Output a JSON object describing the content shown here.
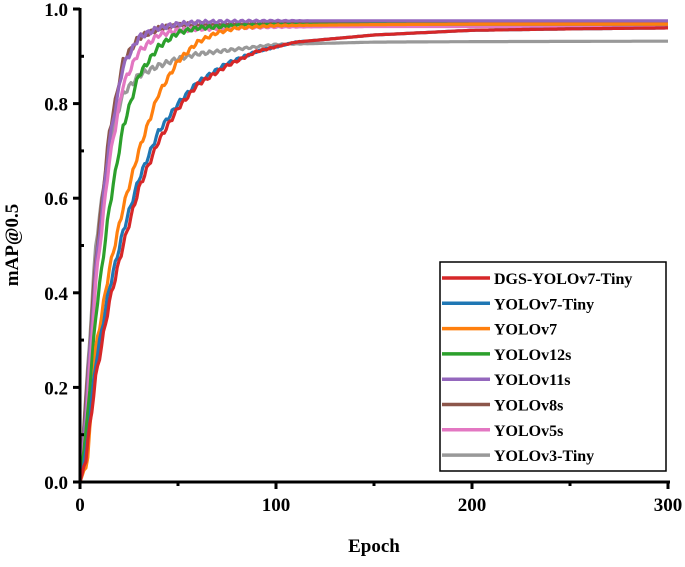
{
  "chart_data": {
    "type": "line",
    "title": "",
    "xlabel": "Epoch",
    "ylabel": "mAP@0.5",
    "xlim": [
      0,
      300
    ],
    "ylim": [
      0,
      1.0
    ],
    "xticks": [
      "0",
      "100",
      "200",
      "300"
    ],
    "xtick_values": [
      0,
      100,
      200,
      300
    ],
    "yticks": [
      "0.0",
      "0.2",
      "0.4",
      "0.6",
      "0.8",
      "1.0"
    ],
    "ytick_values": [
      0,
      0.2,
      0.4,
      0.6,
      0.8,
      1.0
    ],
    "grid": false,
    "legend_position": "bottom-right",
    "series": [
      {
        "name": "DGS-YOLOv7-Tiny",
        "color": "#d62728",
        "x": [
          0,
          3,
          8,
          15,
          22,
          30,
          40,
          50,
          60,
          75,
          90,
          110,
          150,
          200,
          250,
          300
        ],
        "values": [
          0,
          0.05,
          0.22,
          0.38,
          0.5,
          0.62,
          0.72,
          0.79,
          0.84,
          0.88,
          0.91,
          0.93,
          0.945,
          0.955,
          0.958,
          0.96
        ]
      },
      {
        "name": "YOLOv7-Tiny",
        "color": "#1f77b4",
        "x": [
          0,
          3,
          8,
          15,
          22,
          30,
          40,
          50,
          60,
          75,
          90,
          110,
          150,
          200,
          250,
          300
        ],
        "values": [
          0,
          0.06,
          0.25,
          0.41,
          0.53,
          0.64,
          0.74,
          0.8,
          0.845,
          0.885,
          0.91,
          0.93,
          0.945,
          0.955,
          0.958,
          0.96
        ]
      },
      {
        "name": "YOLOv7",
        "color": "#ff7f0e",
        "x": [
          0,
          4,
          8,
          15,
          22,
          30,
          40,
          50,
          60,
          70,
          80,
          100,
          150,
          200,
          300
        ],
        "values": [
          0,
          0.05,
          0.28,
          0.45,
          0.58,
          0.7,
          0.82,
          0.89,
          0.93,
          0.95,
          0.96,
          0.965,
          0.967,
          0.968,
          0.968
        ]
      },
      {
        "name": "YOLOv12s",
        "color": "#2ca02c",
        "x": [
          0,
          3,
          8,
          15,
          22,
          30,
          40,
          50,
          60,
          80,
          100,
          150,
          200,
          300
        ],
        "values": [
          0,
          0.1,
          0.35,
          0.58,
          0.75,
          0.86,
          0.92,
          0.95,
          0.96,
          0.965,
          0.967,
          0.968,
          0.968,
          0.968
        ]
      },
      {
        "name": "YOLOv11s",
        "color": "#9467bd",
        "x": [
          0,
          3,
          8,
          15,
          22,
          30,
          40,
          50,
          60,
          80,
          100,
          150,
          200,
          300
        ],
        "values": [
          0,
          0.15,
          0.45,
          0.72,
          0.88,
          0.94,
          0.96,
          0.968,
          0.972,
          0.974,
          0.975,
          0.975,
          0.975,
          0.975
        ]
      },
      {
        "name": "YOLOv8s",
        "color": "#8c564b",
        "x": [
          0,
          3,
          8,
          15,
          22,
          30,
          40,
          50,
          60,
          80,
          100,
          150,
          200,
          300
        ],
        "values": [
          0,
          0.17,
          0.47,
          0.74,
          0.89,
          0.94,
          0.958,
          0.965,
          0.968,
          0.969,
          0.97,
          0.97,
          0.97,
          0.97
        ]
      },
      {
        "name": "YOLOv5s",
        "color": "#e377c2",
        "x": [
          0,
          3,
          8,
          15,
          22,
          30,
          40,
          50,
          60,
          80,
          100,
          150,
          200,
          300
        ],
        "values": [
          0,
          0.12,
          0.42,
          0.68,
          0.84,
          0.91,
          0.945,
          0.955,
          0.958,
          0.96,
          0.962,
          0.963,
          0.963,
          0.963
        ]
      },
      {
        "name": "YOLOv3-Tiny",
        "color": "#999999",
        "x": [
          0,
          3,
          8,
          15,
          22,
          30,
          40,
          50,
          60,
          80,
          100,
          150,
          200,
          300
        ],
        "values": [
          0,
          0.18,
          0.5,
          0.72,
          0.82,
          0.86,
          0.88,
          0.895,
          0.905,
          0.915,
          0.925,
          0.93,
          0.931,
          0.932
        ]
      }
    ]
  }
}
